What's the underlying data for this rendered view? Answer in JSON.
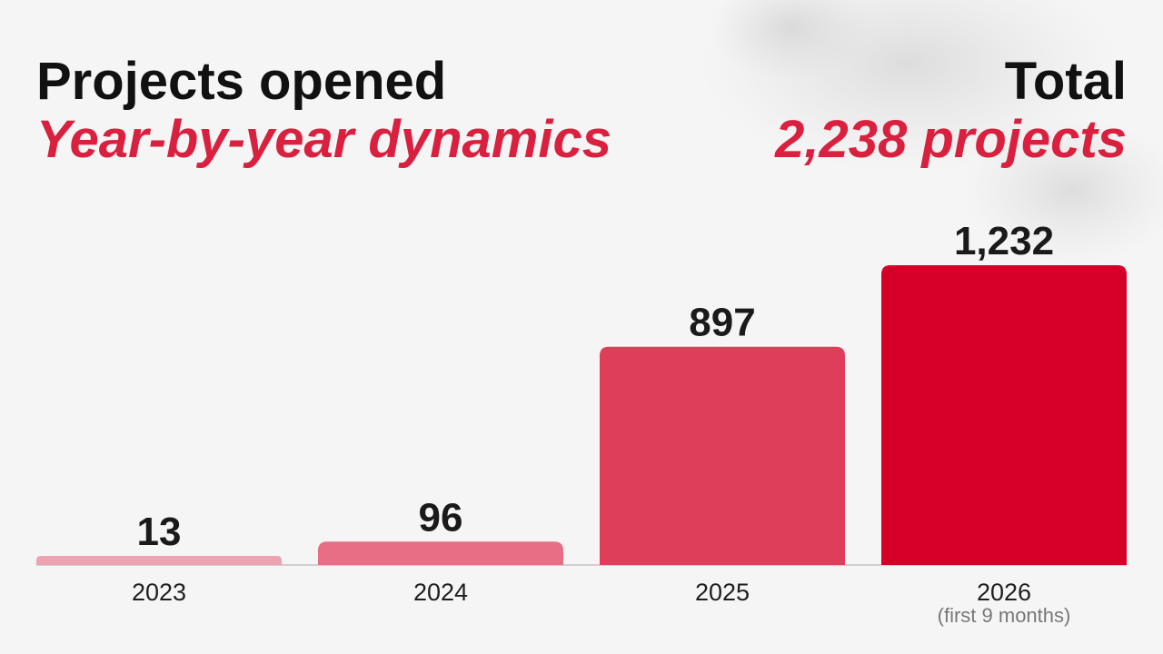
{
  "header": {
    "title": "Projects opened",
    "subtitle": "Year-by-year dynamics",
    "total_label": "Total",
    "total_value": "2,238 projects"
  },
  "colors": {
    "accent": "#d9203f",
    "text": "#111111",
    "background": "#f5f5f5",
    "bars": [
      "#eda3b1",
      "#e66f85",
      "#df3e5b",
      "#d50027"
    ]
  },
  "chart_data": {
    "type": "bar",
    "categories": [
      "2023",
      "2024",
      "2025",
      "2026"
    ],
    "category_notes": [
      "",
      "",
      "",
      "(first 9 months)"
    ],
    "values": [
      13,
      96,
      897,
      1232
    ],
    "value_labels": [
      "13",
      "96",
      "897",
      "1,232"
    ],
    "grid": false,
    "legend": "none"
  }
}
